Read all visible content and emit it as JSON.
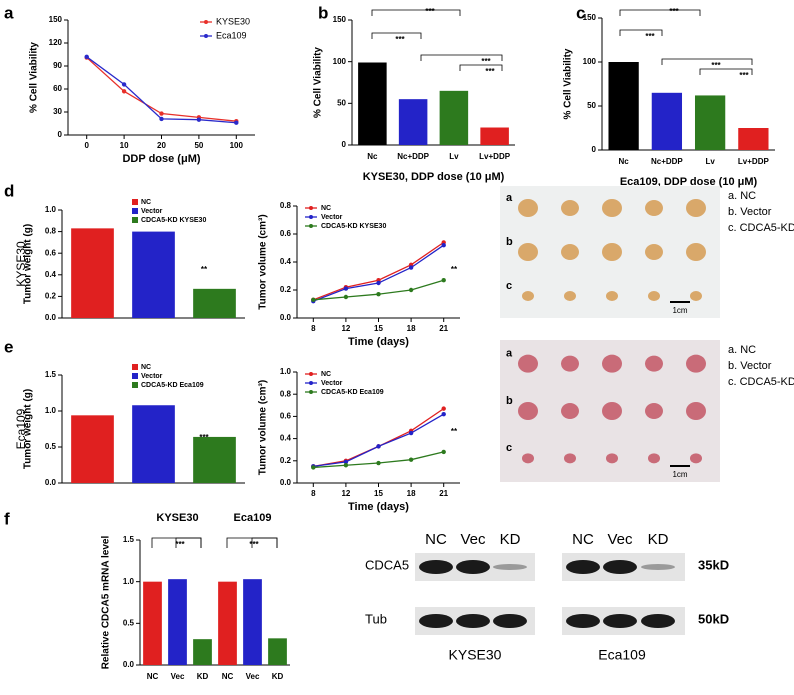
{
  "panel_letters": [
    "a",
    "b",
    "c",
    "d",
    "e",
    "f"
  ],
  "chart_data": [
    {
      "type": "line",
      "categories": [
        "0",
        "10",
        "20",
        "50",
        "100"
      ],
      "xlabel": "DDP dose (μM)",
      "ylabel": "% Cell Viability",
      "series": [
        {
          "name": "KYSE30",
          "color": "#e8302a",
          "values": [
            101,
            57,
            28,
            23,
            18
          ]
        },
        {
          "name": "Eca109",
          "color": "#2a2acb",
          "values": [
            102,
            66,
            21,
            20,
            16
          ]
        }
      ],
      "ylim": [
        0,
        150
      ],
      "yticks": [
        0,
        30,
        60,
        90,
        120,
        150
      ],
      "legend": "top-right"
    },
    {
      "type": "bar",
      "categories": [
        "Nc",
        "Nc+DDP",
        "Lv",
        "Lv+DDP"
      ],
      "values": [
        99,
        55,
        65,
        21
      ],
      "colors": [
        "#000000",
        "#2323c8",
        "#2d7a1e",
        "#e02020"
      ],
      "xlabel": "KYSE30, DDP dose (10 μM)",
      "ylabel": "% Cell Viability",
      "ylim": [
        0,
        150
      ],
      "yticks": [
        0,
        50,
        100,
        150
      ],
      "annotations": [
        "***",
        "***",
        "***",
        "***"
      ]
    },
    {
      "type": "bar",
      "categories": [
        "Nc",
        "Nc+DDP",
        "Lv",
        "Lv+DDP"
      ],
      "values": [
        100,
        65,
        62,
        25
      ],
      "colors": [
        "#000000",
        "#2323c8",
        "#2d7a1e",
        "#e02020"
      ],
      "xlabel": "Eca109, DDP dose (10 μM)",
      "ylabel": "% Cell Viability",
      "ylim": [
        0,
        150
      ],
      "yticks": [
        0,
        50,
        100,
        150
      ],
      "annotations": [
        "***",
        "***",
        "***",
        "***"
      ]
    },
    {
      "type": "bar",
      "categories": [
        "NC",
        "Vector",
        "CDCA5-KD KYSE30"
      ],
      "values": [
        0.83,
        0.8,
        0.27
      ],
      "colors": [
        "#e02020",
        "#2323c8",
        "#2d7a1e"
      ],
      "ylabel": "Tumor weight (g)",
      "side_label": "KYSE30",
      "ylim": [
        0,
        1
      ],
      "yticks": [
        {
          "value": 0,
          "label": "0.0"
        },
        0.2,
        0.4,
        0.6,
        0.8,
        {
          "value": 1,
          "label": "1.0"
        }
      ],
      "legend": "top-left",
      "annotations": [
        "**"
      ]
    },
    {
      "type": "line",
      "categories": [
        "8",
        "12",
        "15",
        "18",
        "21"
      ],
      "xlabel": "Time (days)",
      "ylabel": "Tumor volume (cm³)",
      "series": [
        {
          "name": "NC",
          "color": "#e02020",
          "values": [
            0.13,
            0.22,
            0.27,
            0.38,
            0.54
          ]
        },
        {
          "name": "Vector",
          "color": "#2323c8",
          "values": [
            0.12,
            0.21,
            0.25,
            0.36,
            0.52
          ]
        },
        {
          "name": "CDCA5-KD KYSE30",
          "color": "#2d7a1e",
          "values": [
            0.13,
            0.15,
            0.17,
            0.2,
            0.27
          ]
        }
      ],
      "ylim": [
        0,
        0.8
      ],
      "yticks": [
        {
          "value": 0,
          "label": "0.0"
        },
        0.2,
        0.4,
        0.6,
        0.8
      ],
      "legend": "top-left",
      "annotations": [
        "**"
      ]
    },
    {
      "type": "bar",
      "categories": [
        "NC",
        "Vector",
        "CDCA5-KD Eca109"
      ],
      "values": [
        0.94,
        1.08,
        0.64
      ],
      "colors": [
        "#e02020",
        "#2323c8",
        "#2d7a1e"
      ],
      "ylabel": "Tumor weight (g)",
      "side_label": "Eca109",
      "ylim": [
        0,
        1.5
      ],
      "yticks": [
        {
          "value": 0,
          "label": "0.0"
        },
        0.5,
        {
          "value": 1,
          "label": "1.0"
        },
        1.5
      ],
      "legend": "top-left",
      "annotations": [
        "***"
      ]
    },
    {
      "type": "line",
      "categories": [
        "8",
        "12",
        "15",
        "18",
        "21"
      ],
      "xlabel": "Time (days)",
      "ylabel": "Tumor volume (cm³)",
      "series": [
        {
          "name": "NC",
          "color": "#e02020",
          "values": [
            0.15,
            0.2,
            0.33,
            0.47,
            0.67
          ]
        },
        {
          "name": "Vector",
          "color": "#2323c8",
          "values": [
            0.15,
            0.19,
            0.33,
            0.45,
            0.62
          ]
        },
        {
          "name": "CDCA5-KD Eca109",
          "color": "#2d7a1e",
          "values": [
            0.14,
            0.16,
            0.18,
            0.21,
            0.28
          ]
        }
      ],
      "ylim": [
        0,
        1
      ],
      "yticks": [
        {
          "value": 0,
          "label": "0.0"
        },
        0.2,
        0.4,
        0.6,
        0.8,
        {
          "value": 1,
          "label": "1.0"
        }
      ],
      "legend": "top-left",
      "annotations": [
        "**"
      ]
    },
    {
      "type": "bar",
      "categories": [
        "NC",
        "Vec",
        "KD",
        "NC",
        "Vec",
        "KD"
      ],
      "values": [
        1.0,
        1.03,
        0.31,
        1.0,
        1.03,
        0.32
      ],
      "colors": [
        "#e02020",
        "#2323c8",
        "#2d7a1e",
        "#e02020",
        "#2323c8",
        "#2d7a1e"
      ],
      "ylabel": "Relative CDCA5 mRNA level",
      "group_labels": [
        "KYSE30",
        "Eca109"
      ],
      "ylim": [
        0,
        1.5
      ],
      "yticks": [
        {
          "value": 0,
          "label": "0.0"
        },
        0.5,
        {
          "value": 1,
          "label": "1.0"
        },
        1.5
      ],
      "annotations": [
        "***",
        "***"
      ]
    }
  ],
  "tumor_photos": [
    {
      "row_labels": [
        "a",
        "b",
        "c"
      ],
      "legend": [
        "a. NC",
        "b. Vector",
        "c. CDCA5-KD"
      ],
      "scale": "1cm"
    },
    {
      "row_labels": [
        "a",
        "b",
        "c"
      ],
      "legend": [
        "a. NC",
        "b. Vector",
        "c. CDCA5-KD"
      ],
      "scale": "1cm"
    }
  ],
  "western_blot": {
    "lanes": [
      "NC",
      "Vec",
      "KD",
      "NC",
      "Vec",
      "KD"
    ],
    "proteins": [
      "CDCA5",
      "Tub"
    ],
    "sizes": [
      "35kD",
      "50kD"
    ],
    "cell_lines": [
      "KYSE30",
      "Eca109"
    ]
  }
}
